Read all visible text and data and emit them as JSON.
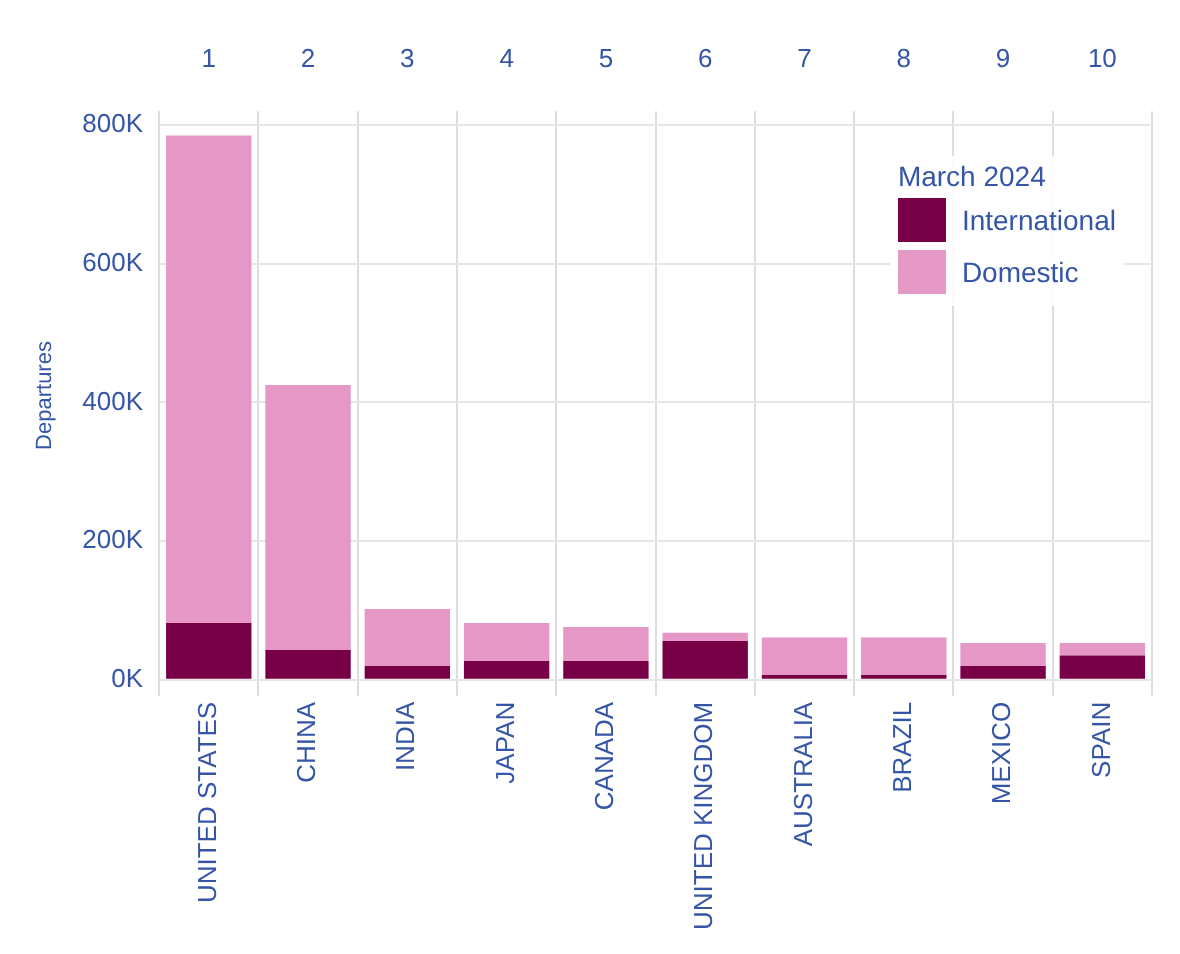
{
  "chart_data": {
    "type": "bar",
    "ylabel": "Departures",
    "legend_title": "March 2024",
    "categories": [
      "UNITED STATES",
      "CHINA",
      "INDIA",
      "JAPAN",
      "CANADA",
      "UNITED KINGDOM",
      "AUSTRALIA",
      "BRAZIL",
      "MEXICO",
      "SPAIN"
    ],
    "series": [
      {
        "name": "International",
        "color": "#780046",
        "values": [
          82,
          43,
          20,
          27,
          27,
          56,
          7,
          7,
          20,
          35
        ]
      },
      {
        "name": "Domestic",
        "color": "#e597c5",
        "values": [
          703,
          382,
          82,
          55,
          49,
          12,
          54,
          54,
          33,
          18
        ]
      }
    ],
    "stacked": true,
    "ylim": [
      0,
      820
    ],
    "yticks": [
      {
        "value": 0,
        "label": "0K"
      },
      {
        "value": 200,
        "label": "200K"
      },
      {
        "value": 400,
        "label": "400K"
      },
      {
        "value": 600,
        "label": "600K"
      },
      {
        "value": 800,
        "label": "800K"
      }
    ],
    "x2lim": [
      0.5,
      10.5
    ],
    "x2ticks": [
      1,
      2,
      3,
      4,
      5,
      6,
      7,
      8,
      9,
      10
    ],
    "grid": true,
    "legend": "top right"
  }
}
